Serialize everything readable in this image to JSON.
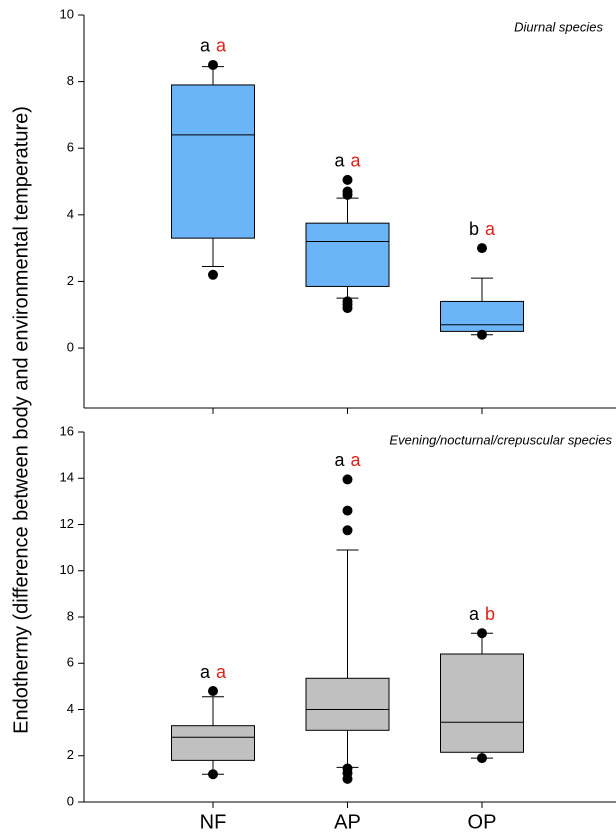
{
  "y_label": "Endothermy (difference between body and environmental temperature)",
  "chart_data": [
    {
      "type": "box",
      "annotation": "Diurnal species",
      "color": "#6cb4f8",
      "categories": [
        null,
        null,
        null
      ],
      "ylim": [
        -1.8,
        10
      ],
      "yticks": [
        0,
        2,
        4,
        6,
        8,
        10
      ],
      "whisker_low": [
        2.45,
        1.5,
        0.4
      ],
      "q1": [
        3.3,
        1.85,
        0.5
      ],
      "median": [
        6.4,
        3.2,
        0.7
      ],
      "q3": [
        7.9,
        3.75,
        1.4
      ],
      "whisker_high": [
        8.45,
        4.5,
        2.1
      ],
      "outliers": [
        [
          8.5,
          2.2
        ],
        [
          5.05,
          4.7,
          4.6,
          1.4,
          1.3,
          1.2
        ],
        [
          3.0,
          0.4
        ]
      ],
      "letters": [
        [
          "a",
          "a"
        ],
        [
          "a",
          "a"
        ],
        [
          "b",
          "a"
        ]
      ],
      "letter_colors": [
        "#000000",
        "#e0201b"
      ]
    },
    {
      "type": "box",
      "annotation": "Evening/nocturnal/crepuscular species",
      "color": "#c0c0c0",
      "categories": [
        "NF",
        "AP",
        "OP"
      ],
      "ylim": [
        0,
        16
      ],
      "yticks": [
        0,
        2,
        4,
        6,
        8,
        10,
        12,
        14,
        16
      ],
      "whisker_low": [
        1.2,
        1.5,
        1.9
      ],
      "q1": [
        1.8,
        3.1,
        2.15
      ],
      "median": [
        2.8,
        4.0,
        3.45
      ],
      "q3": [
        3.3,
        5.35,
        6.4
      ],
      "whisker_high": [
        4.55,
        10.9,
        7.3
      ],
      "outliers": [
        [
          4.8,
          1.2
        ],
        [
          13.95,
          12.6,
          11.75,
          1.45,
          1.25,
          1.0
        ],
        [
          7.3,
          1.9
        ]
      ],
      "letters": [
        [
          "a",
          "a"
        ],
        [
          "a",
          "a"
        ],
        [
          "a",
          "b"
        ]
      ],
      "letter_colors": [
        "#000000",
        "#e0201b"
      ]
    }
  ]
}
